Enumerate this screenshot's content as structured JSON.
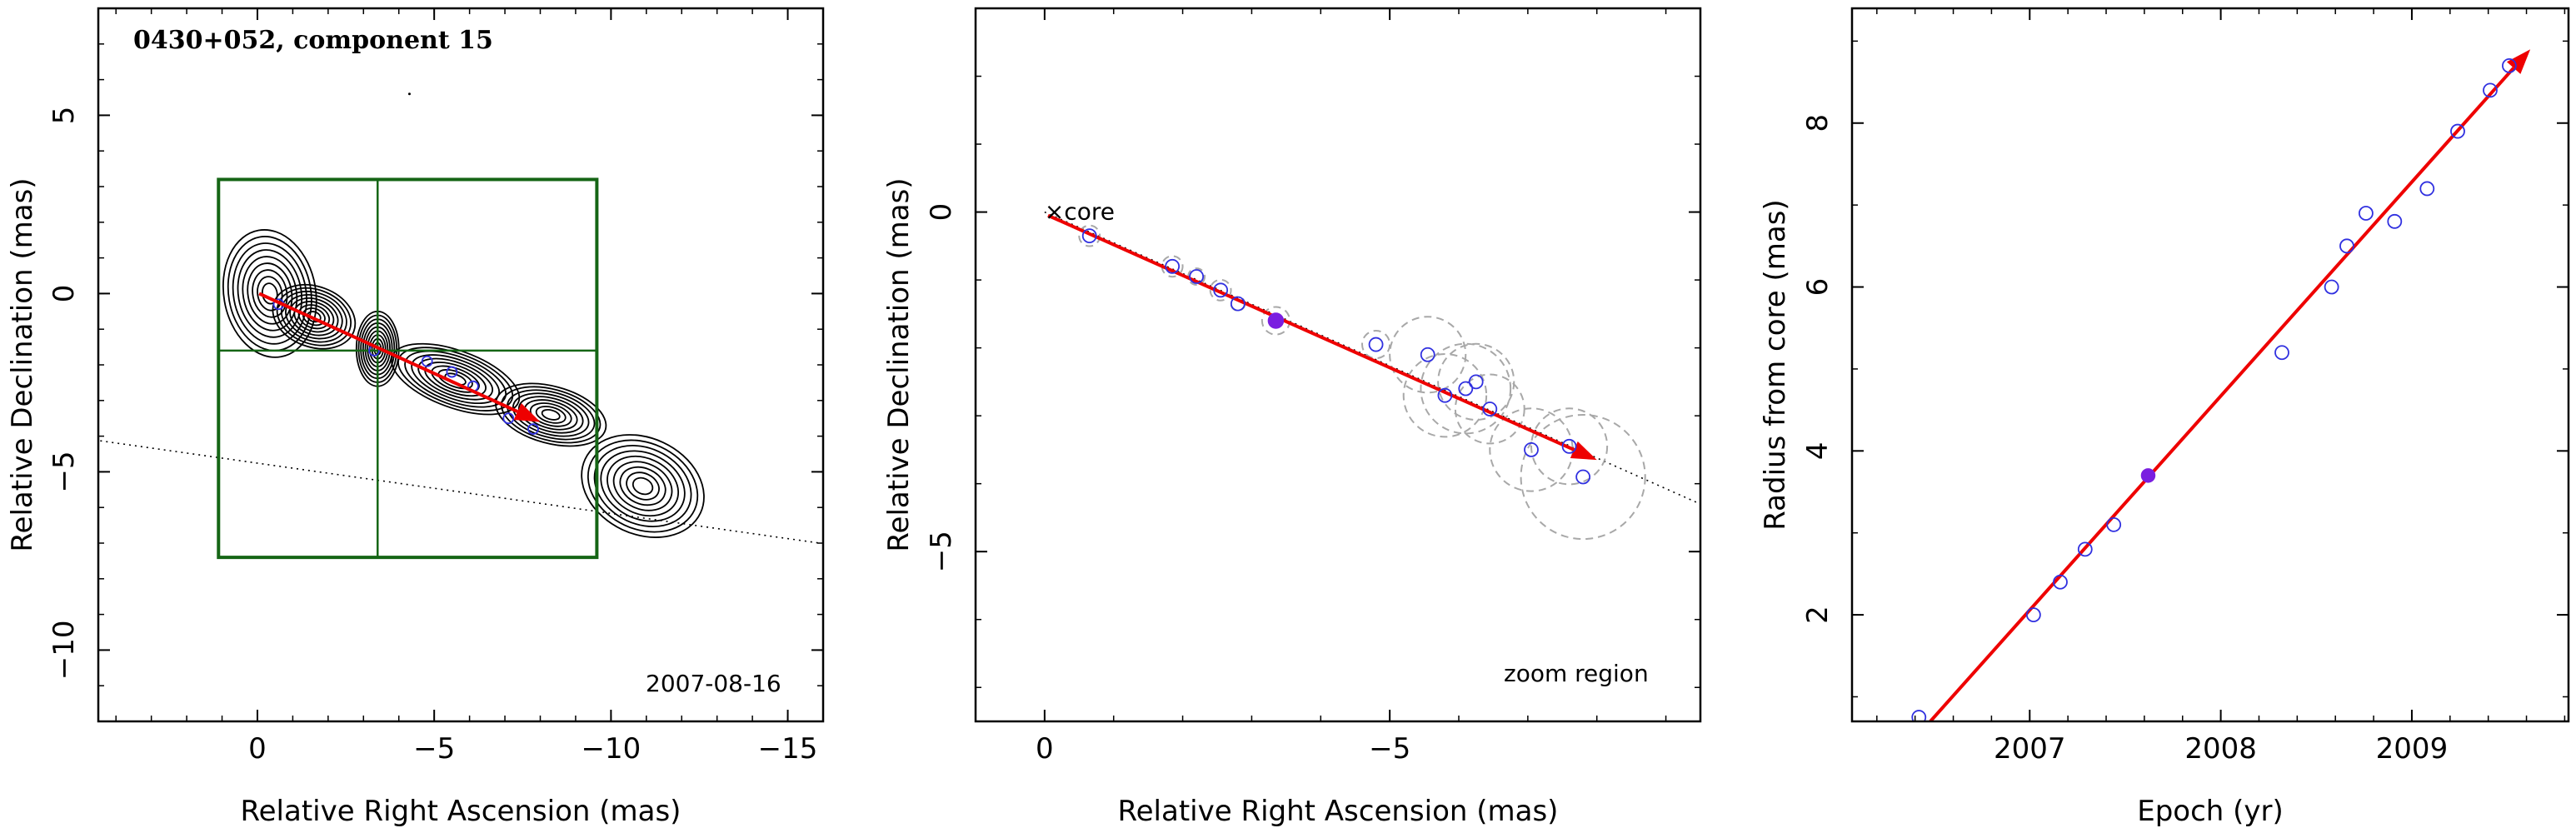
{
  "chart_data": [
    {
      "type": "contour",
      "title": "0430+052, component 15",
      "date_label": "2007-08-16",
      "xlabel": "Relative Right Ascension (mas)",
      "ylabel": "Relative Declination (mas)",
      "xlim": [
        4.5,
        -16
      ],
      "ylim": [
        -12,
        8
      ],
      "xticks": [
        0,
        -5,
        -10,
        -15
      ],
      "xtick_labels": [
        "0",
        "−5",
        "−10",
        "−15"
      ],
      "yticks": [
        5,
        0,
        -5,
        -10
      ],
      "ytick_labels": [
        "5",
        "0",
        "−5",
        "−10"
      ],
      "zoom_box": {
        "x": [
          -9.6,
          1.1
        ],
        "y": [
          -7.4,
          3.2
        ],
        "crosshair": [
          -3.4,
          -1.6
        ]
      },
      "dotted_path": {
        "x": [
          8.2,
          -15.9
        ],
        "y": [
          -3.6,
          -7.0
        ]
      },
      "arrow": {
        "x": [
          -0.05,
          -8.0
        ],
        "y": [
          0.0,
          -3.6
        ],
        "color": "#ee0000"
      },
      "blobs": [
        {
          "x": -0.35,
          "y": 0.0,
          "rx": 1.3,
          "ry": 1.8,
          "angle": -10
        },
        {
          "x": -1.6,
          "y": -0.65,
          "rx": 1.2,
          "ry": 0.85,
          "angle": 20
        },
        {
          "x": -3.4,
          "y": -1.55,
          "rx": 0.6,
          "ry": 1.05,
          "angle": 0
        },
        {
          "x": -5.6,
          "y": -2.4,
          "rx": 1.9,
          "ry": 0.8,
          "angle": 20
        },
        {
          "x": -8.3,
          "y": -3.4,
          "rx": 1.6,
          "ry": 0.8,
          "angle": 15
        },
        {
          "x": -10.9,
          "y": -5.4,
          "rx": 1.8,
          "ry": 1.35,
          "angle": 25
        }
      ],
      "points": {
        "x": [
          -0.6,
          -3.3,
          -4.8,
          -5.5,
          -6.1,
          -7.1,
          -7.8
        ],
        "y": [
          -0.3,
          -1.6,
          -1.9,
          -2.2,
          -2.6,
          -3.5,
          -3.8
        ],
        "color": "#3030e0"
      }
    },
    {
      "type": "scatter",
      "label": "zoom region",
      "annotation": "core",
      "xlabel": "Relative Right Ascension (mas)",
      "ylabel": "Relative Declination (mas)",
      "xlim": [
        1,
        -9.5
      ],
      "ylim": [
        -7.5,
        3
      ],
      "xticks": [
        0,
        -5
      ],
      "xtick_labels": [
        "0",
        "−5"
      ],
      "yticks": [
        0,
        -5
      ],
      "ytick_labels": [
        "0",
        "−5"
      ],
      "points": {
        "x": [
          -0.65,
          -1.85,
          -2.2,
          -2.55,
          -2.8,
          -4.8,
          -5.55,
          -5.8,
          -6.1,
          -6.25,
          -6.45,
          -7.05,
          -7.6,
          -7.8
        ],
        "y": [
          -0.35,
          -0.8,
          -0.95,
          -1.15,
          -1.35,
          -1.95,
          -2.1,
          -2.7,
          -2.6,
          -2.5,
          -2.9,
          -3.5,
          -3.45,
          -3.9
        ],
        "err": [
          0.15,
          0.15,
          0.12,
          0.15,
          0.1,
          0.2,
          0.55,
          0.6,
          0.65,
          0.55,
          0.5,
          0.6,
          0.55,
          0.9
        ],
        "color": "#3030e0"
      },
      "highlight": {
        "x": -3.35,
        "y": -1.6,
        "err": 0.2,
        "color": "#7a1ee0"
      },
      "arrow": {
        "x": [
          -0.05,
          -8.0
        ],
        "y": [
          -0.05,
          -3.65
        ],
        "color": "#ee0000"
      },
      "dotted_path": {
        "x": [
          0,
          -9.5
        ],
        "y": [
          0,
          -4.3
        ]
      }
    },
    {
      "type": "scatter",
      "xlabel": "Epoch (yr)",
      "ylabel": "Radius from core (mas)",
      "xlim": [
        2006.07,
        2009.82
      ],
      "ylim": [
        0.7,
        9.4
      ],
      "xticks": [
        2007,
        2008,
        2009
      ],
      "xtick_labels": [
        "2007",
        "2008",
        "2009"
      ],
      "yticks": [
        2,
        4,
        6,
        8
      ],
      "ytick_labels": [
        "2",
        "4",
        "6",
        "8"
      ],
      "points": {
        "x": [
          2006.42,
          2007.02,
          2007.16,
          2007.29,
          2007.44,
          2008.32,
          2008.58,
          2008.66,
          2008.76,
          2008.91,
          2009.08,
          2009.24,
          2009.41,
          2009.51
        ],
        "y": [
          0.75,
          2.0,
          2.4,
          2.8,
          3.1,
          5.2,
          6.0,
          6.5,
          6.9,
          6.8,
          7.2,
          7.9,
          8.4,
          8.7
        ],
        "color": "#3030e0"
      },
      "highlight": {
        "x": 2007.62,
        "y": 3.7,
        "color": "#7a1ee0"
      },
      "fit_arrow": {
        "x": [
          2006.48,
          2009.62
        ],
        "y": [
          0.7,
          8.9
        ],
        "color": "#ee0000"
      }
    }
  ]
}
